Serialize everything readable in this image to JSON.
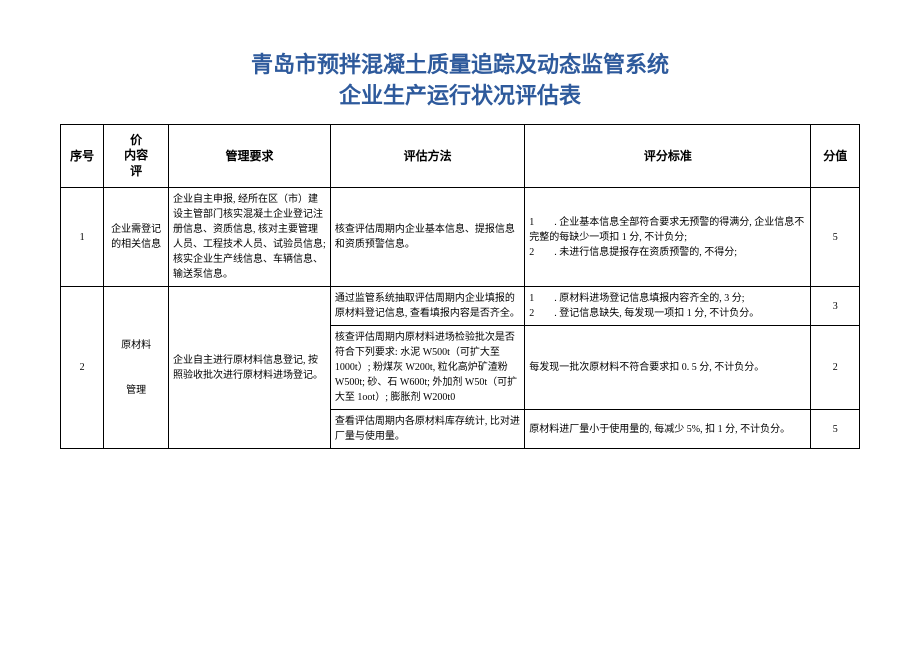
{
  "title_line1": "青岛市预拌混凝土质量追踪及动态监管系统",
  "title_line2": "企业生产运行状况评估表",
  "headers": {
    "seq": "序号",
    "content": "价\n内容\n评",
    "req": "管理要求",
    "method": "评估方法",
    "criteria": "评分标准",
    "score": "分值"
  },
  "rows": [
    {
      "seq": "1",
      "content": "企业需登记的相关信息",
      "req": "企业自主申报, 经所在区（市）建设主管部门核实混凝土企业登记注册信息、资质信息, 核对主要管理人员、工程技术人员、试验员信息; 核实企业生产线信息、车辆信息、输送泵信息。",
      "method": "核查评估周期内企业基本信息、提报信息和资质预警信息。",
      "criteria": "1        . 企业基本信息全部符合要求无预警的得满分, 企业信息不完整的每缺少一项扣 1 分, 不计负分;\n2        . 未进行信息提报存在资质预警的, 不得分;",
      "score": "5"
    },
    {
      "seq": "2",
      "content": "原材料\n\n管理",
      "req": "企业自主进行原材料信息登记, 按照验收批次进行原材料进场登记。",
      "sub": [
        {
          "method": "通过监管系统抽取评估周期内企业填报的原材料登记信息, 查看填报内容是否齐全。",
          "criteria": "1        . 原材料进场登记信息填报内容齐全的, 3 分;\n2        . 登记信息缺失, 每发现一项扣 1 分, 不计负分。",
          "score": "3"
        },
        {
          "method": "核查评估周期内原材料进场检验批次是否符合下列要求: 水泥 W500t（可扩大至1000t）; 粉煤灰 W200t, 粒化高炉矿渣粉W500t; 砂、石 W600t; 外加剂 W50t（可扩大至 1oot）; 膨胀剂 W200t0",
          "criteria": "每发现一批次原材料不符合要求扣 0. 5 分, 不计负分。",
          "score": "2"
        },
        {
          "method": "查看评估周期内各原材料库存统计, 比对进厂量与使用量。",
          "criteria": "原材料进厂量小于使用量的, 每减少 5%, 扣 1 分, 不计负分。",
          "score": "5"
        }
      ]
    }
  ]
}
